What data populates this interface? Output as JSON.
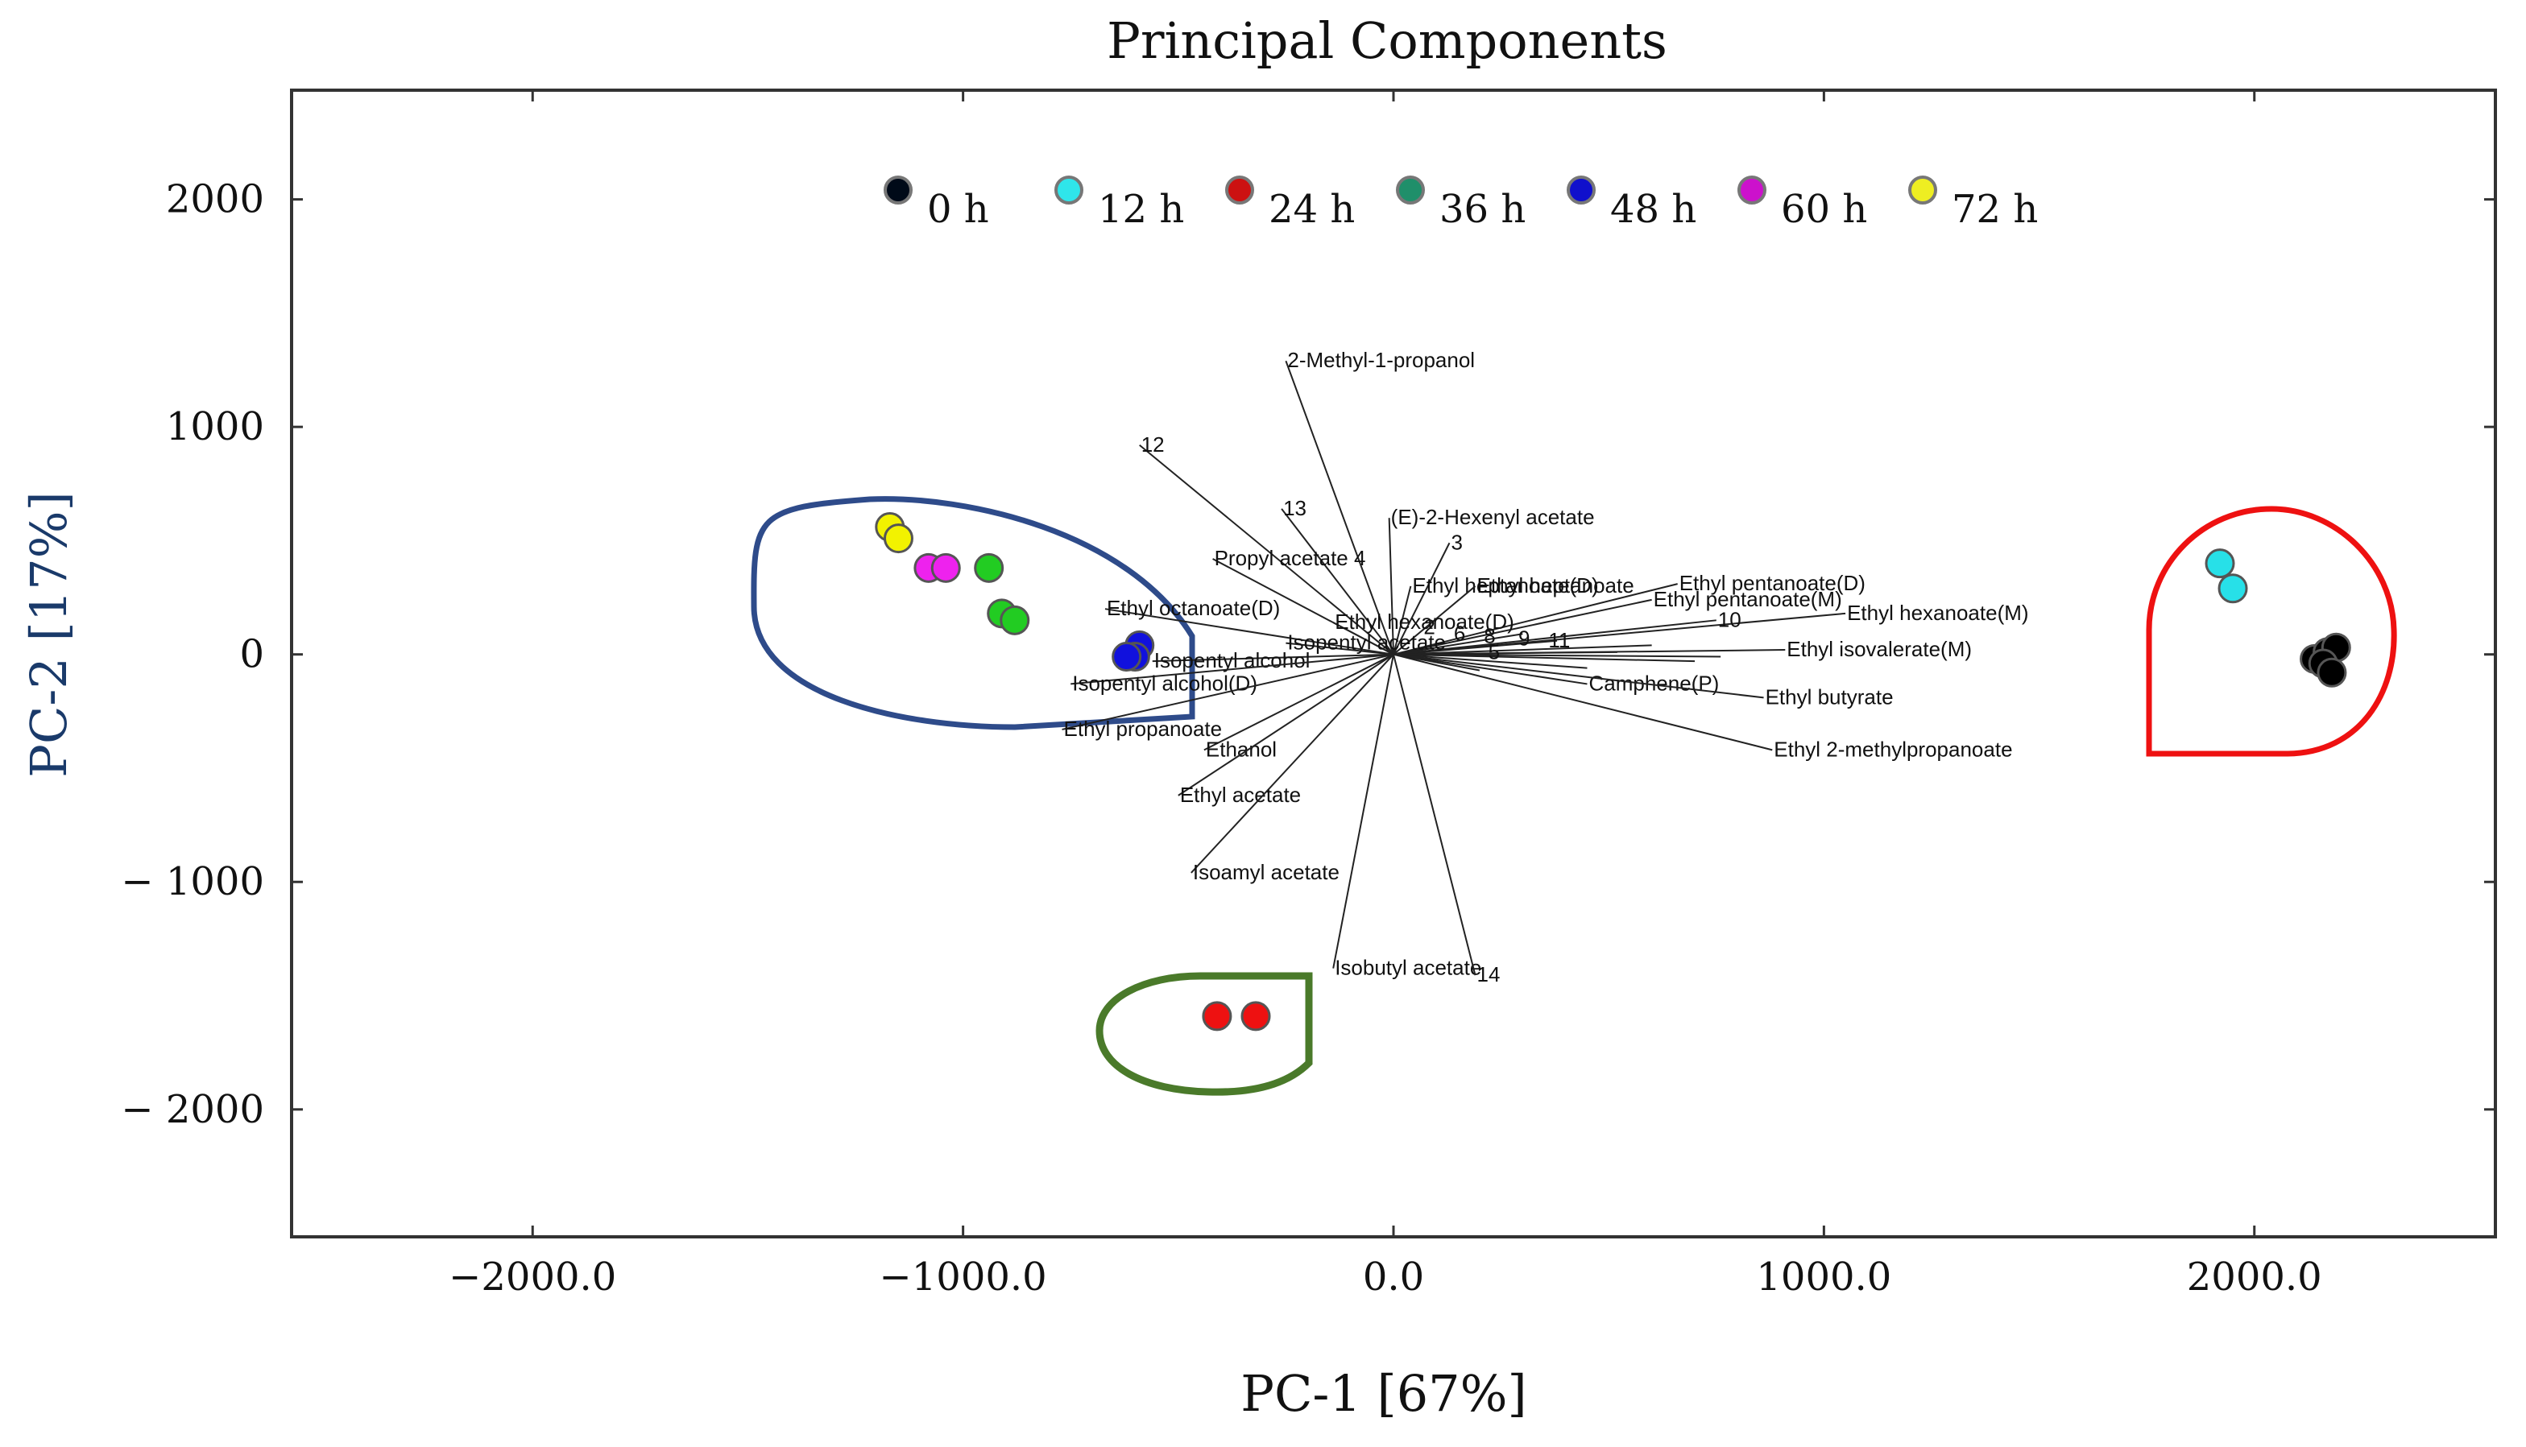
{
  "chart_data": {
    "type": "scatter",
    "title": "Principal Components",
    "xlabel": "PC-1 [67%]",
    "ylabel": "PC-2 [17%]",
    "xlim": [
      -2560,
      2560
    ],
    "ylim": [
      -2560,
      2480
    ],
    "xticks": [
      -2000,
      -1000,
      0,
      1000,
      2000
    ],
    "xtick_labels": [
      "−2000.0",
      "−1000.0",
      "0.0",
      "1000.0",
      "2000.0"
    ],
    "yticks": [
      2000,
      1000,
      0,
      -1000,
      -2000
    ],
    "ytick_labels": [
      "2000",
      "1000",
      "0",
      "− 1000",
      "− 2000"
    ],
    "grid": false,
    "legend": "top",
    "series": [
      {
        "name": "0 h",
        "color": "#000000",
        "points": [
          [
            2140,
            -20
          ],
          [
            2170,
            10
          ],
          [
            2190,
            30
          ],
          [
            2160,
            -40
          ],
          [
            2180,
            -80
          ]
        ]
      },
      {
        "name": "12 h",
        "color": "#27e0e8",
        "points": [
          [
            1920,
            400
          ],
          [
            1950,
            290
          ]
        ]
      },
      {
        "name": "24 h",
        "color": "#ee1111",
        "points": [
          [
            -410,
            -1590
          ],
          [
            -320,
            -1590
          ]
        ]
      },
      {
        "name": "36 h",
        "color": "#22cc22",
        "points": [
          [
            -940,
            380
          ],
          [
            -910,
            180
          ],
          [
            -880,
            150
          ]
        ]
      },
      {
        "name": "48 h",
        "color": "#1111dd",
        "points": [
          [
            -590,
            40
          ],
          [
            -600,
            -10
          ],
          [
            -620,
            -10
          ]
        ]
      },
      {
        "name": "60 h",
        "color": "#ee22ee",
        "points": [
          [
            -1080,
            380
          ],
          [
            -1040,
            380
          ]
        ]
      },
      {
        "name": "72 h",
        "color": "#f2f200",
        "points": [
          [
            -1170,
            560
          ],
          [
            -1150,
            510
          ]
        ]
      }
    ],
    "legend_colors": [
      "#000a18",
      "#2fe5ea",
      "#cc1111",
      "#1f8f6a",
      "#1010cc",
      "#cc11cc",
      "#eeee22"
    ],
    "loadings": [
      {
        "label": "2-Methyl-1-propanol",
        "x": -250,
        "y": 1290
      },
      {
        "label": "12",
        "x": -590,
        "y": 920
      },
      {
        "label": "13",
        "x": -260,
        "y": 640
      },
      {
        "label": "(E)-2-Hexenyl acetate",
        "x": -10,
        "y": 600
      },
      {
        "label": "Propyl acetate 4",
        "x": -420,
        "y": 420
      },
      {
        "label": "3",
        "x": 130,
        "y": 490
      },
      {
        "label": "Ethyl heptanoate(D)",
        "x": 40,
        "y": 300
      },
      {
        "label": "Ethyl heptanoate",
        "x": 190,
        "y": 300
      },
      {
        "label": "Ethyl pentanoate(D)",
        "x": 660,
        "y": 310
      },
      {
        "label": "Ethyl pentanoate(M)",
        "x": 600,
        "y": 240
      },
      {
        "label": "Ethyl hexanoate(M)",
        "x": 1050,
        "y": 180
      },
      {
        "label": "10",
        "x": 750,
        "y": 150
      },
      {
        "label": "Ethyl octanoate(D)",
        "x": -670,
        "y": 200
      },
      {
        "label": "Ethyl hexanoate(D)",
        "x": -140,
        "y": 140
      },
      {
        "label": "Isopentyl acetate",
        "x": -250,
        "y": 50
      },
      {
        "label": "Isopentyl alcohol",
        "x": -560,
        "y": -30
      },
      {
        "label": "Isopentyl alcohol(D)",
        "x": -750,
        "y": -130
      },
      {
        "label": "Ethyl isovalerate(M)",
        "x": 910,
        "y": 20
      },
      {
        "label": "Camphene(P)",
        "x": 450,
        "y": -130
      },
      {
        "label": "Ethyl butyrate",
        "x": 860,
        "y": -190
      },
      {
        "label": "Ethyl 2-methylpropanoate",
        "x": 880,
        "y": -420
      },
      {
        "label": "Ethyl propanoate",
        "x": -770,
        "y": -330
      },
      {
        "label": "Ethanol",
        "x": -440,
        "y": -420
      },
      {
        "label": "Ethyl acetate",
        "x": -500,
        "y": -620
      },
      {
        "label": "Isoamyl acetate",
        "x": -470,
        "y": -960
      },
      {
        "label": "Isobutyl acetate",
        "x": -140,
        "y": -1380
      },
      {
        "label": "14",
        "x": 190,
        "y": -1410
      }
    ],
    "annotations": [
      "2",
      "6",
      "8",
      "9",
      "11",
      "5"
    ]
  }
}
